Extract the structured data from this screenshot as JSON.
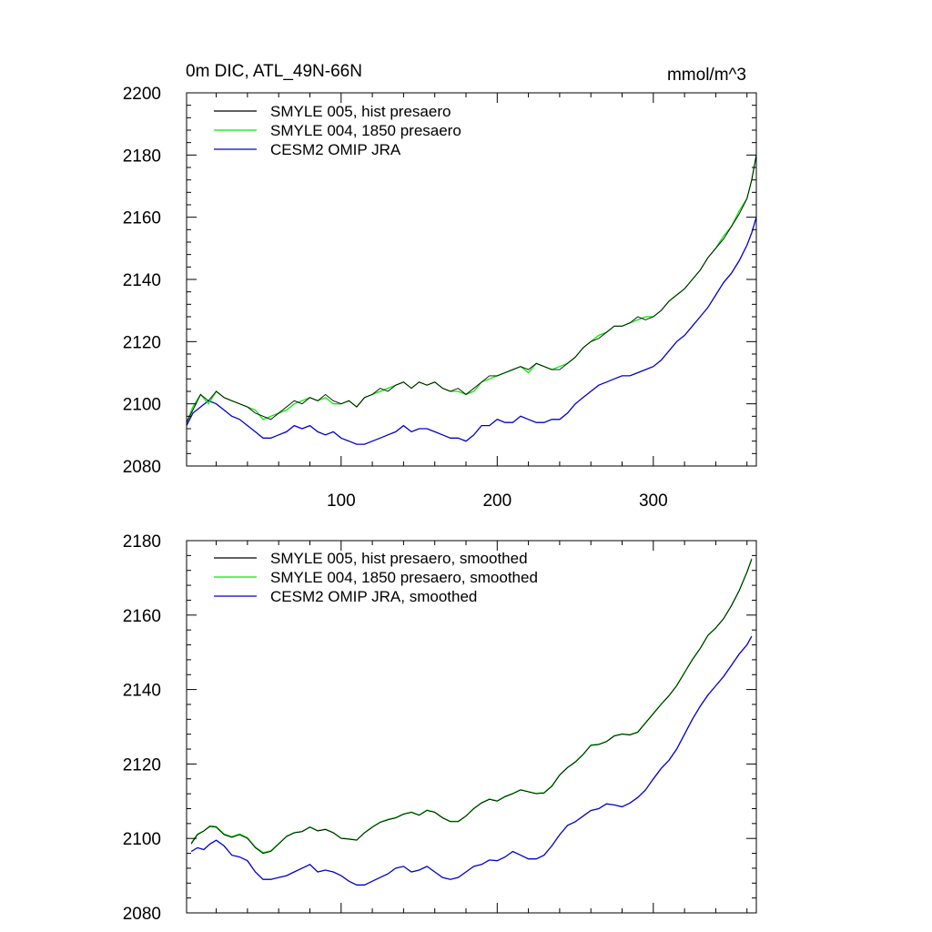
{
  "figure": {
    "title": "0m DIC, ATL_49N-66N",
    "units": "mmol/m^3"
  },
  "chart_data": [
    {
      "type": "line",
      "title": "0m DIC, ATL_49N-66N",
      "units_label": "mmol/m^3",
      "xlabel": "",
      "ylabel": "",
      "xlim": [
        1,
        366
      ],
      "ylim": [
        2080,
        2200
      ],
      "x_ticks": [
        100,
        200,
        300
      ],
      "x_tick_labels": [
        "100",
        "200",
        "300"
      ],
      "y_ticks": [
        2080,
        2100,
        2120,
        2140,
        2160,
        2180,
        2200
      ],
      "y_tick_labels": [
        "2080",
        "2100",
        "2120",
        "2140",
        "2160",
        "2180",
        "2200"
      ],
      "x_minor_step": 20,
      "y_minor_step": 4,
      "grid": false,
      "legend_position": "top-left",
      "x": [
        1,
        5,
        10,
        15,
        20,
        25,
        30,
        35,
        40,
        45,
        50,
        55,
        60,
        65,
        70,
        75,
        80,
        85,
        90,
        95,
        100,
        105,
        110,
        115,
        120,
        125,
        130,
        135,
        140,
        145,
        150,
        155,
        160,
        165,
        170,
        175,
        180,
        185,
        190,
        195,
        200,
        205,
        210,
        215,
        220,
        225,
        230,
        235,
        240,
        245,
        250,
        255,
        260,
        265,
        270,
        275,
        280,
        285,
        290,
        295,
        300,
        305,
        310,
        315,
        320,
        325,
        330,
        335,
        340,
        345,
        350,
        355,
        360,
        363,
        366
      ],
      "series": [
        {
          "name": "SMYLE 005, hist presaero",
          "color": "#000000",
          "values": [
            2094,
            2098,
            2103,
            2101,
            2104,
            2102,
            2101,
            2100,
            2099,
            2097,
            2096,
            2095,
            2097,
            2099,
            2101,
            2100,
            2102,
            2101,
            2103,
            2101,
            2100,
            2101,
            2099,
            2102,
            2103,
            2105,
            2104,
            2106,
            2107,
            2105,
            2107,
            2106,
            2107,
            2105,
            2104,
            2105,
            2103,
            2105,
            2107,
            2109,
            2109,
            2110,
            2111,
            2112,
            2111,
            2113,
            2112,
            2111,
            2111,
            2113,
            2115,
            2118,
            2120,
            2121,
            2123,
            2125,
            2125,
            2126,
            2128,
            2127,
            2128,
            2130,
            2133,
            2135,
            2137,
            2140,
            2143,
            2147,
            2150,
            2153,
            2157,
            2161,
            2166,
            2172,
            2180
          ]
        },
        {
          "name": "SMYLE 004, 1850 presaero",
          "color": "#00ee00",
          "values": [
            2094,
            2099,
            2103,
            2100,
            2104,
            2102,
            2101,
            2100,
            2099,
            2098,
            2095,
            2096,
            2097,
            2098,
            2100,
            2101,
            2102,
            2101,
            2102,
            2100,
            2100,
            2101,
            2099,
            2102,
            2103,
            2104,
            2105,
            2106,
            2107,
            2105,
            2107,
            2106,
            2107,
            2105,
            2104,
            2104,
            2103,
            2104,
            2107,
            2108,
            2109,
            2110,
            2111,
            2112,
            2110,
            2113,
            2112,
            2111,
            2112,
            2113,
            2115,
            2118,
            2120,
            2122,
            2123,
            2125,
            2125,
            2126,
            2127,
            2128,
            2128,
            2130,
            2133,
            2135,
            2137,
            2140,
            2143,
            2147,
            2150,
            2154,
            2157,
            2162,
            2166,
            2172,
            2180
          ]
        },
        {
          "name": "CESM2 OMIP JRA",
          "color": "#0000cc",
          "values": [
            2093,
            2097,
            2099,
            2101,
            2100,
            2098,
            2096,
            2095,
            2093,
            2091,
            2089,
            2089,
            2090,
            2091,
            2093,
            2092,
            2093,
            2091,
            2090,
            2091,
            2089,
            2088,
            2087,
            2087,
            2088,
            2089,
            2090,
            2091,
            2093,
            2091,
            2092,
            2092,
            2091,
            2090,
            2089,
            2089,
            2088,
            2090,
            2093,
            2093,
            2095,
            2094,
            2094,
            2096,
            2095,
            2094,
            2094,
            2095,
            2095,
            2097,
            2100,
            2102,
            2104,
            2106,
            2107,
            2108,
            2109,
            2109,
            2110,
            2111,
            2112,
            2114,
            2117,
            2120,
            2122,
            2125,
            2128,
            2131,
            2135,
            2139,
            2142,
            2146,
            2151,
            2155,
            2160
          ]
        }
      ]
    },
    {
      "type": "line",
      "title": "",
      "xlabel": "",
      "ylabel": "",
      "xlim": [
        1,
        366
      ],
      "ylim": [
        2080,
        2180
      ],
      "x_ticks": [
        100,
        200,
        300
      ],
      "x_tick_labels": [],
      "y_ticks": [
        2080,
        2100,
        2120,
        2140,
        2160,
        2180
      ],
      "y_tick_labels": [
        "2080",
        "2100",
        "2120",
        "2140",
        "2160",
        "2180"
      ],
      "x_minor_step": 20,
      "y_minor_step": 4,
      "grid": false,
      "legend_position": "top-left",
      "x": [
        4,
        8,
        12,
        16,
        20,
        25,
        30,
        35,
        40,
        45,
        50,
        55,
        60,
        65,
        70,
        75,
        80,
        85,
        90,
        95,
        100,
        105,
        110,
        115,
        120,
        125,
        130,
        135,
        140,
        145,
        150,
        155,
        160,
        165,
        170,
        175,
        180,
        185,
        190,
        195,
        200,
        205,
        210,
        215,
        220,
        225,
        230,
        235,
        240,
        245,
        250,
        255,
        260,
        265,
        270,
        275,
        280,
        285,
        290,
        295,
        300,
        305,
        310,
        315,
        320,
        325,
        330,
        335,
        340,
        345,
        350,
        355,
        360,
        363
      ],
      "series": [
        {
          "name": "SMYLE 005, hist presaero, smoothed",
          "color": "#000000",
          "values": [
            2098.5,
            2101,
            2102,
            2103.2,
            2103,
            2101,
            2100.3,
            2101,
            2100,
            2097.5,
            2096,
            2096.5,
            2098.5,
            2100.5,
            2101.5,
            2101.8,
            2103,
            2102,
            2102.4,
            2101.5,
            2100,
            2099.8,
            2099.5,
            2101.5,
            2103,
            2104.3,
            2105,
            2105.5,
            2106.5,
            2107,
            2106.2,
            2107.5,
            2107,
            2105.5,
            2104.5,
            2104.5,
            2106,
            2108,
            2109.5,
            2110.5,
            2110,
            2111.2,
            2112,
            2113,
            2112.5,
            2112,
            2112.2,
            2114,
            2117,
            2119,
            2120.5,
            2122.5,
            2125,
            2125.2,
            2126,
            2127.5,
            2128,
            2127.8,
            2128.5,
            2131,
            2133.5,
            2136,
            2138.3,
            2141,
            2144.5,
            2148,
            2151,
            2154.5,
            2156.5,
            2159,
            2162.5,
            2166.5,
            2171.5,
            2175
          ]
        },
        {
          "name": "SMYLE 004, 1850 presaero, smoothed",
          "color": "#00ee00",
          "values": [
            2098.8,
            2101.2,
            2102,
            2103.4,
            2103.2,
            2101.2,
            2100.5,
            2101.2,
            2100.2,
            2097.7,
            2096.2,
            2096.7,
            2098.6,
            2100.6,
            2101.6,
            2101.9,
            2103.1,
            2102.1,
            2102.5,
            2101.6,
            2100.1,
            2099.9,
            2099.6,
            2101.6,
            2103.1,
            2104.4,
            2105.1,
            2105.6,
            2106.6,
            2107.1,
            2106.3,
            2107.6,
            2107.1,
            2105.6,
            2104.6,
            2104.6,
            2106.1,
            2108.1,
            2109.6,
            2110.6,
            2110.1,
            2111.3,
            2112.1,
            2113.1,
            2112.6,
            2112.1,
            2112.3,
            2114.1,
            2117.1,
            2119.1,
            2120.6,
            2122.6,
            2125.1,
            2125.3,
            2126.1,
            2127.6,
            2128.1,
            2127.9,
            2128.6,
            2131.1,
            2133.6,
            2136.1,
            2138.4,
            2141.1,
            2144.6,
            2148.1,
            2151.1,
            2154.6,
            2156.6,
            2159.1,
            2162.6,
            2166.6,
            2171.6,
            2175.2
          ]
        },
        {
          "name": "CESM2 OMIP JRA, smoothed",
          "color": "#0000cc",
          "values": [
            2096.5,
            2097.5,
            2097,
            2098.5,
            2099.5,
            2098,
            2095.5,
            2095,
            2094,
            2091,
            2089,
            2089,
            2089.5,
            2090,
            2091,
            2092,
            2093,
            2091,
            2091.5,
            2091,
            2090,
            2088.5,
            2087.5,
            2087.5,
            2088.5,
            2089.5,
            2090.5,
            2092,
            2092.5,
            2091,
            2091.5,
            2092.5,
            2091,
            2089.5,
            2089,
            2089.5,
            2091,
            2092.5,
            2093,
            2094.2,
            2094,
            2095,
            2096.5,
            2095.5,
            2094.5,
            2094.5,
            2095.5,
            2098,
            2101,
            2103.5,
            2104.5,
            2106,
            2107.5,
            2108,
            2109.3,
            2109,
            2108.5,
            2109.5,
            2111,
            2113,
            2116,
            2118.8,
            2121,
            2124,
            2128,
            2132,
            2135.5,
            2138.5,
            2141,
            2143.5,
            2146.5,
            2149.5,
            2152,
            2154.3
          ]
        }
      ]
    }
  ]
}
